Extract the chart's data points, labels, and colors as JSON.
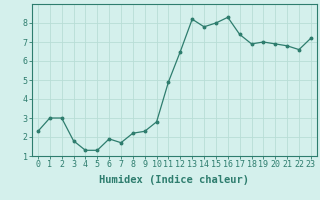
{
  "x": [
    0,
    1,
    2,
    3,
    4,
    5,
    6,
    7,
    8,
    9,
    10,
    11,
    12,
    13,
    14,
    15,
    16,
    17,
    18,
    19,
    20,
    21,
    22,
    23
  ],
  "y": [
    2.3,
    3.0,
    3.0,
    1.8,
    1.3,
    1.3,
    1.9,
    1.7,
    2.2,
    2.3,
    2.8,
    4.9,
    6.5,
    8.2,
    7.8,
    8.0,
    8.3,
    7.4,
    6.9,
    7.0,
    6.9,
    6.8,
    6.6,
    7.2
  ],
  "line_color": "#2e7d6e",
  "bg_color": "#d4f0ec",
  "grid_color": "#b8ddd6",
  "xlabel": "Humidex (Indice chaleur)",
  "xlabel_fontsize": 7.5,
  "tick_fontsize": 6.0,
  "ylim": [
    1,
    9
  ],
  "xlim": [
    -0.5,
    23.5
  ],
  "yticks": [
    1,
    2,
    3,
    4,
    5,
    6,
    7,
    8
  ],
  "xticks": [
    0,
    1,
    2,
    3,
    4,
    5,
    6,
    7,
    8,
    9,
    10,
    11,
    12,
    13,
    14,
    15,
    16,
    17,
    18,
    19,
    20,
    21,
    22,
    23
  ],
  "xtick_labels": [
    "0",
    "1",
    "2",
    "3",
    "4",
    "5",
    "6",
    "7",
    "8",
    "9",
    "10",
    "11",
    "12",
    "13",
    "14",
    "15",
    "16",
    "17",
    "18",
    "19",
    "20",
    "21",
    "22",
    "23"
  ],
  "marker": "o",
  "marker_size": 1.8,
  "line_width": 0.9
}
